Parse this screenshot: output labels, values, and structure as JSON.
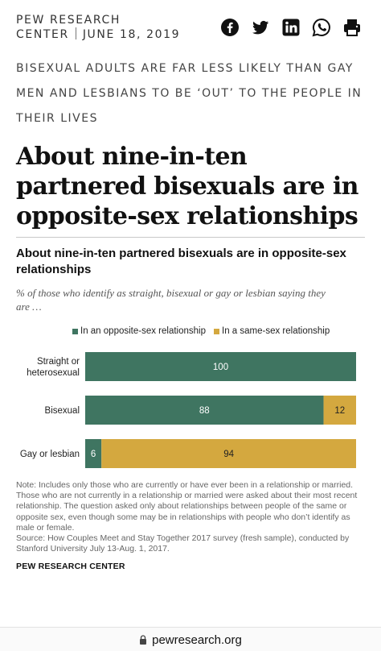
{
  "brand": {
    "line1": "PEW RESEARCH",
    "line2": "CENTER",
    "date": "JUNE 18, 2019"
  },
  "share_icons": [
    "facebook-icon",
    "twitter-icon",
    "linkedin-icon",
    "whatsapp-icon",
    "print-icon"
  ],
  "kicker": "BISEXUAL ADULTS ARE FAR LESS LIKELY THAN GAY MEN AND LESBIANS TO BE ‘OUT’ TO THE PEOPLE IN THEIR LIVES",
  "headline": "About nine-in-ten partnered bisexuals are in opposite-sex relationships",
  "chart_data": {
    "type": "bar",
    "orientation": "horizontal",
    "stacked": true,
    "title": "About nine-in-ten partnered bisexuals are in opposite-sex relationships",
    "subtitle": "% of those who identify as straight, bisexual or gay or lesbian saying they are …",
    "categories": [
      "Straight or heterosexual",
      "Bisexual",
      "Gay or lesbian"
    ],
    "series": [
      {
        "name": "In an opposite-sex relationship",
        "color": "#3f7561",
        "values": [
          100,
          88,
          6
        ]
      },
      {
        "name": "In a same-sex relationship",
        "color": "#d4a83f",
        "values": [
          0,
          12,
          94
        ]
      }
    ],
    "xlim": [
      0,
      100
    ],
    "legend": "top"
  },
  "note": "Note: Includes only those who are currently or have ever been in a relationship or married. Those who are not currently in a relationship or married were asked about their most recent relationship. The question asked only about relationships between people of the same or opposite sex, even though some may be in relationships with people who don’t identify as male or female.",
  "source": "Source: How Couples Meet and Stay Together 2017 survey (fresh sample), conducted by Stanford University July 13-Aug. 1, 2017.",
  "org": "PEW RESEARCH CENTER",
  "browser": {
    "url": "pewresearch.org"
  }
}
